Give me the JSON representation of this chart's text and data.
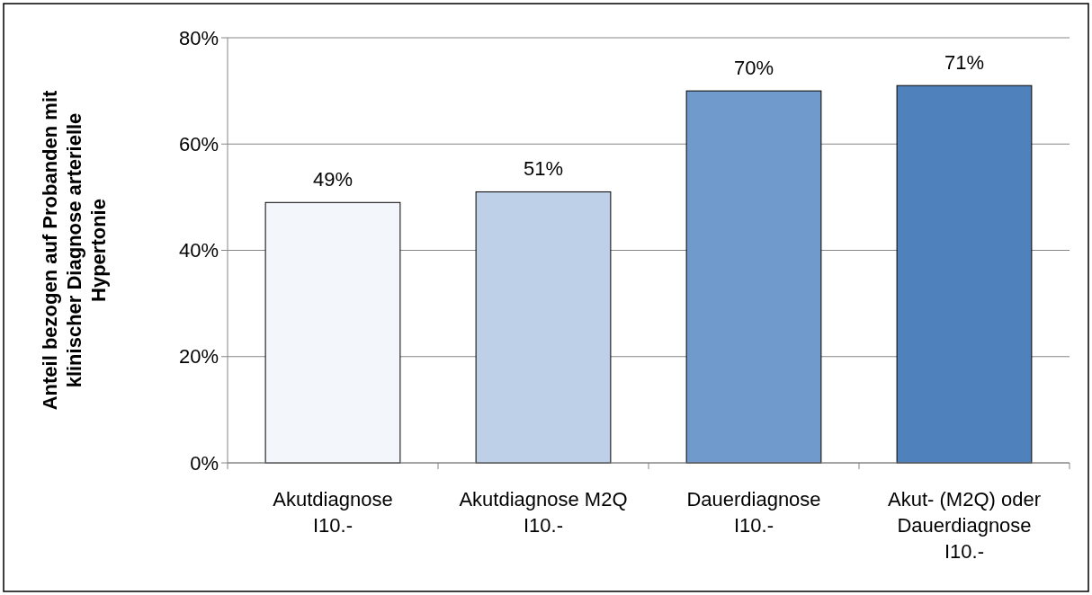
{
  "chart_data": {
    "type": "bar",
    "ylabel": "Anteil bezogen auf Probanden mit klinischer Diagnose arterielle Hypertonie",
    "categories": [
      "Akutdiagnose I10.-",
      "Akutdiagnose M2Q I10.-",
      "Dauerdiagnose I10.-",
      "Akut- (M2Q) oder Dauerdiagnose I10.-"
    ],
    "values": [
      49,
      51,
      70,
      71
    ],
    "colors": [
      "#f3f7fb",
      "#bdd0e8",
      "#7099cc",
      "#4f81bd"
    ],
    "value_labels": [
      "49%",
      "51%",
      "70%",
      "71%"
    ],
    "ylim": [
      0,
      80
    ],
    "yticks": [
      {
        "value": 0,
        "label": "0%"
      },
      {
        "value": 20,
        "label": "20%"
      },
      {
        "value": 40,
        "label": "40%"
      },
      {
        "value": 60,
        "label": "60%"
      },
      {
        "value": 80,
        "label": "80%"
      }
    ],
    "grid": "y"
  }
}
